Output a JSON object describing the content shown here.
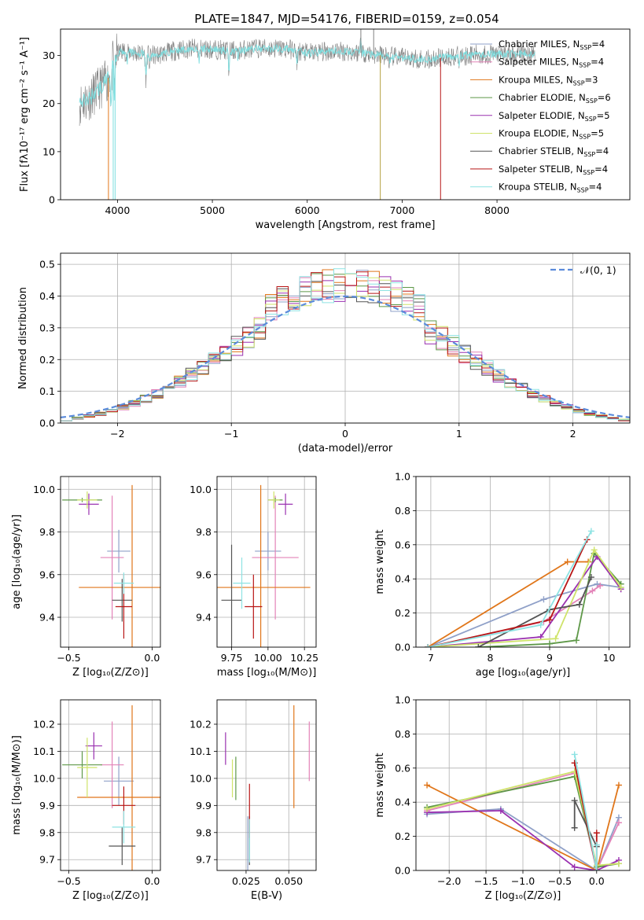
{
  "figure": {
    "background": "#ffffff"
  },
  "colors": {
    "Chabrier MILES": "#8fa0c8",
    "Salpeter MILES": "#e383b8",
    "Kroupa MILES": "#e0761a",
    "Chabrier ELODIE": "#5e9848",
    "Salpeter ELODIE": "#9a30b0",
    "Kroupa ELODIE": "#cfe36a",
    "Chabrier STELIB": "#555555",
    "Salpeter STELIB": "#b81616",
    "Kroupa STELIB": "#8ee3e3",
    "gaussian": "#5b8bdb",
    "spectrum_gray": "#808080",
    "spectrum_cyan": "#7fdfe0"
  },
  "chart_data": [
    {
      "id": "spectrum",
      "type": "line",
      "title": "PLATE=1847, MJD=54176, FIBERID=0159, z=0.054",
      "xlabel": "wavelength [Angstrom, rest frame]",
      "ylabel": "Flux [fλ10⁻¹⁷ erg cm⁻² s⁻¹ A⁻¹]",
      "xlim": [
        3400,
        9400
      ],
      "ylim": [
        0,
        35.5
      ],
      "xticks": [
        4000,
        5000,
        6000,
        7000,
        8000
      ],
      "yticks": [
        0,
        10,
        20,
        30
      ],
      "grid": false,
      "legend": "upper right",
      "legend_entries": [
        {
          "label": "Chabrier MILES, N",
          "sub": "SSP",
          "suffix": "=4"
        },
        {
          "label": "Salpeter MILES, N",
          "sub": "SSP",
          "suffix": "=4"
        },
        {
          "label": "Kroupa MILES, N",
          "sub": "SSP",
          "suffix": "=3"
        },
        {
          "label": "Chabrier ELODIE, N",
          "sub": "SSP",
          "suffix": "=6"
        },
        {
          "label": "Salpeter ELODIE, N",
          "sub": "SSP",
          "suffix": "=5"
        },
        {
          "label": "Kroupa ELODIE, N",
          "sub": "SSP",
          "suffix": "=5"
        },
        {
          "label": "Chabrier STELIB, N",
          "sub": "SSP",
          "suffix": "=4"
        },
        {
          "label": "Salpeter STELIB, N",
          "sub": "SSP",
          "suffix": "=4"
        },
        {
          "label": "Kroupa STELIB, N",
          "sub": "SSP",
          "suffix": "=4"
        }
      ],
      "continuum": [
        [
          3600,
          20
        ],
        [
          3700,
          21
        ],
        [
          3800,
          23
        ],
        [
          3900,
          25
        ],
        [
          3970,
          30
        ],
        [
          4050,
          31
        ],
        [
          4200,
          30.5
        ],
        [
          4400,
          30
        ],
        [
          4600,
          31
        ],
        [
          4800,
          31.5
        ],
        [
          5000,
          31.3
        ],
        [
          5200,
          31
        ],
        [
          5500,
          31.5
        ],
        [
          5800,
          31.4
        ],
        [
          6000,
          30.5
        ],
        [
          6300,
          31
        ],
        [
          6600,
          30.5
        ],
        [
          6800,
          30
        ],
        [
          7000,
          29.5
        ],
        [
          7300,
          29.2
        ],
        [
          7500,
          29.8
        ],
        [
          7800,
          30.2
        ],
        [
          8000,
          30.3
        ],
        [
          8400,
          30.4
        ]
      ],
      "features": [
        {
          "x": 3934,
          "depth": 8
        },
        {
          "x": 3968,
          "depth": 8
        },
        {
          "x": 4102,
          "depth": 2
        },
        {
          "x": 4300,
          "depth": 5
        },
        {
          "x": 4340,
          "depth": 2
        },
        {
          "x": 4861,
          "depth": 3
        },
        {
          "x": 5175,
          "depth": 4
        },
        {
          "x": 5270,
          "depth": 1.5
        },
        {
          "x": 5890,
          "depth": 3
        },
        {
          "x": 6563,
          "depth": -3
        },
        {
          "x": 6870,
          "depth": 2
        },
        {
          "x": 7600,
          "depth": 2
        }
      ],
      "spikes": [
        {
          "x": 3905,
          "y": 0
        },
        {
          "x": 3955,
          "y": 0
        },
        {
          "x": 3975,
          "y": 0
        },
        {
          "x": 6770,
          "y": 0
        },
        {
          "x": 7405,
          "y": 0
        },
        {
          "x": 6565,
          "y": 35.5
        },
        {
          "x": 6700,
          "y": 35.5
        }
      ]
    },
    {
      "id": "residual_hist",
      "type": "histogram",
      "xlabel": "(data-model)/error",
      "ylabel": "Normed distribution",
      "xlim": [
        -2.5,
        2.5
      ],
      "ylim": [
        0,
        0.535
      ],
      "xticks": [
        -2,
        -1,
        0,
        1,
        2
      ],
      "yticks": [
        0,
        0.1,
        0.2,
        0.3,
        0.4,
        0.5
      ],
      "grid": true,
      "bin_width": 0.1,
      "legend_entry": "𝒩(0, 1)",
      "gaussian": {
        "mu": 0,
        "sigma": 1
      },
      "peak_values": [
        0.49,
        0.48,
        0.5,
        0.51,
        0.46,
        0.44,
        0.4,
        0.42
      ]
    },
    {
      "id": "age_vs_Z",
      "type": "errorbar",
      "xlabel": "Z [log₁₀(Z/Z⊙)]",
      "ylabel": "age  [log₁₀(age/yr)]",
      "xlim": [
        -0.55,
        0.05
      ],
      "ylim": [
        9.26,
        10.06
      ],
      "xticks": [
        -0.5,
        0.0
      ],
      "xticklabels": [
        "−0.5",
        "0.0"
      ],
      "yticks": [
        9.4,
        9.6,
        9.8,
        10.0
      ],
      "grid": true,
      "points": [
        {
          "model": "Chabrier MILES",
          "x": -0.2,
          "y": 9.71,
          "xerr": 0.07,
          "yerr": 0.1
        },
        {
          "model": "Salpeter MILES",
          "x": -0.24,
          "y": 9.68,
          "xerr": 0.07,
          "yerr": 0.29
        },
        {
          "model": "Kroupa MILES",
          "x": -0.12,
          "y": 9.54,
          "xerr": 0.32,
          "yerr": 0.48
        },
        {
          "model": "Chabrier ELODIE",
          "x": -0.42,
          "y": 9.95,
          "xerr": 0.12,
          "yerr": 0.01
        },
        {
          "model": "Salpeter ELODIE",
          "x": -0.38,
          "y": 9.93,
          "xerr": 0.06,
          "yerr": 0.05
        },
        {
          "model": "Kroupa ELODIE",
          "x": -0.39,
          "y": 9.95,
          "xerr": 0.06,
          "yerr": 0.04
        },
        {
          "model": "Chabrier STELIB",
          "x": -0.18,
          "y": 9.48,
          "xerr": 0.06,
          "yerr": 0.1
        },
        {
          "model": "Salpeter STELIB",
          "x": -0.17,
          "y": 9.45,
          "xerr": 0.05,
          "yerr": 0.15
        },
        {
          "model": "Kroupa STELIB",
          "x": -0.17,
          "y": 9.56,
          "xerr": 0.06,
          "yerr": 0.05
        }
      ]
    },
    {
      "id": "age_vs_mass",
      "type": "errorbar",
      "xlabel": "mass [log₁₀(M/M⊙)]",
      "ylabel": "",
      "xlim": [
        9.65,
        10.33
      ],
      "ylim": [
        9.26,
        10.06
      ],
      "xticks": [
        9.75,
        10.0,
        10.25
      ],
      "xticklabels": [
        "9.75",
        "10.00",
        "10.25"
      ],
      "yticks": [
        9.4,
        9.6,
        9.8,
        10.0
      ],
      "grid": true,
      "points": [
        {
          "model": "Chabrier MILES",
          "x": 10.0,
          "y": 9.71,
          "xerr": 0.09,
          "yerr": 0.09
        },
        {
          "model": "Salpeter MILES",
          "x": 10.05,
          "y": 9.68,
          "xerr": 0.16,
          "yerr": 0.29
        },
        {
          "model": "Kroupa MILES",
          "x": 9.95,
          "y": 9.54,
          "xerr": 0.34,
          "yerr": 0.48
        },
        {
          "model": "Chabrier ELODIE",
          "x": 10.05,
          "y": 9.95,
          "xerr": 0.05,
          "yerr": 0.01
        },
        {
          "model": "Salpeter ELODIE",
          "x": 10.12,
          "y": 9.93,
          "xerr": 0.05,
          "yerr": 0.05
        },
        {
          "model": "Kroupa ELODIE",
          "x": 10.04,
          "y": 9.95,
          "xerr": 0.04,
          "yerr": 0.04
        },
        {
          "model": "Chabrier STELIB",
          "x": 9.75,
          "y": 9.48,
          "xerr": 0.07,
          "yerr": 0.26
        },
        {
          "model": "Salpeter STELIB",
          "x": 9.9,
          "y": 9.45,
          "xerr": 0.06,
          "yerr": 0.15
        },
        {
          "model": "Kroupa STELIB",
          "x": 9.82,
          "y": 9.56,
          "xerr": 0.06,
          "yerr": 0.12
        }
      ]
    },
    {
      "id": "weight_vs_age",
      "type": "line",
      "xlabel": "age  [log₁₀(age/yr)]",
      "ylabel": "mass weight",
      "xlim": [
        6.75,
        10.35
      ],
      "ylim": [
        0,
        1
      ],
      "xticks": [
        7,
        8,
        9,
        10
      ],
      "yticks": [
        0,
        0.2,
        0.4,
        0.6,
        0.8,
        1.0
      ],
      "grid": true,
      "series": [
        {
          "model": "Chabrier MILES",
          "x": [
            6.95,
            8.9,
            9.8,
            10.2
          ],
          "y": [
            0.0,
            0.28,
            0.37,
            0.35
          ]
        },
        {
          "model": "Salpeter MILES",
          "x": [
            6.95,
            8.9,
            9.72,
            9.85
          ],
          "y": [
            0.0,
            0.15,
            0.33,
            0.36
          ]
        },
        {
          "model": "Kroupa MILES",
          "x": [
            6.95,
            9.3,
            9.65
          ],
          "y": [
            0.0,
            0.5,
            0.5
          ]
        },
        {
          "model": "Chabrier ELODIE",
          "x": [
            7.8,
            9.0,
            9.45,
            9.75,
            10.2
          ],
          "y": [
            0.0,
            0.02,
            0.04,
            0.55,
            0.37
          ]
        },
        {
          "model": "Salpeter ELODIE",
          "x": [
            6.95,
            8.85,
            9.8,
            10.2
          ],
          "y": [
            0.0,
            0.06,
            0.53,
            0.34
          ]
        },
        {
          "model": "Kroupa ELODIE",
          "x": [
            6.95,
            9.1,
            9.75,
            10.2
          ],
          "y": [
            0.0,
            0.05,
            0.57,
            0.35
          ]
        },
        {
          "model": "Chabrier STELIB",
          "x": [
            7.8,
            9.0,
            9.5,
            9.7
          ],
          "y": [
            0.0,
            0.22,
            0.25,
            0.41
          ]
        },
        {
          "model": "Salpeter STELIB",
          "x": [
            6.95,
            9.0,
            9.63
          ],
          "y": [
            0.0,
            0.16,
            0.63
          ]
        },
        {
          "model": "Kroupa STELIB",
          "x": [
            6.95,
            8.85,
            9.7
          ],
          "y": [
            0.0,
            0.13,
            0.68
          ]
        }
      ]
    },
    {
      "id": "mass_vs_Z",
      "type": "errorbar",
      "xlabel": "Z [log₁₀(Z/Z⊙)]",
      "ylabel": "mass [log₁₀(M/M⊙)]",
      "xlim": [
        -0.55,
        0.05
      ],
      "ylim": [
        9.66,
        10.29
      ],
      "xticks": [
        -0.5,
        0.0
      ],
      "xticklabels": [
        "−0.5",
        "0.0"
      ],
      "yticks": [
        9.7,
        9.8,
        9.9,
        10.0,
        10.1,
        10.2
      ],
      "grid": true,
      "points": [
        {
          "model": "Chabrier MILES",
          "x": -0.2,
          "y": 9.99,
          "xerr": 0.09,
          "yerr": 0.09
        },
        {
          "model": "Salpeter MILES",
          "x": -0.24,
          "y": 10.05,
          "xerr": 0.07,
          "yerr": 0.16
        },
        {
          "model": "Kroupa MILES",
          "x": -0.12,
          "y": 9.93,
          "xerr": 0.33,
          "yerr": 0.34
        },
        {
          "model": "Chabrier ELODIE",
          "x": -0.42,
          "y": 10.05,
          "xerr": 0.12,
          "yerr": 0.05
        },
        {
          "model": "Salpeter ELODIE",
          "x": -0.35,
          "y": 10.12,
          "xerr": 0.05,
          "yerr": 0.05
        },
        {
          "model": "Kroupa ELODIE",
          "x": -0.39,
          "y": 10.04,
          "xerr": 0.06,
          "yerr": 0.11
        },
        {
          "model": "Chabrier STELIB",
          "x": -0.18,
          "y": 9.75,
          "xerr": 0.08,
          "yerr": 0.07
        },
        {
          "model": "Salpeter STELIB",
          "x": -0.17,
          "y": 9.9,
          "xerr": 0.07,
          "yerr": 0.07
        },
        {
          "model": "Kroupa STELIB",
          "x": -0.17,
          "y": 9.82,
          "xerr": 0.07,
          "yerr": 0.06
        }
      ]
    },
    {
      "id": "mass_vs_ebv",
      "type": "errorbar",
      "xlabel": "E(B-V)",
      "ylabel": "",
      "xlim": [
        0.008,
        0.066
      ],
      "ylim": [
        9.66,
        10.29
      ],
      "xticks": [
        0.025,
        0.05
      ],
      "xticklabels": [
        "0.025",
        "0.050"
      ],
      "yticks": [
        9.7,
        9.8,
        9.9,
        10.0,
        10.1,
        10.2
      ],
      "grid": true,
      "points": [
        {
          "model": "Chabrier MILES",
          "x": 0.026,
          "y": 9.76,
          "xerr": 0,
          "yerr": 0.1
        },
        {
          "model": "Salpeter MILES",
          "x": 0.062,
          "y": 10.1,
          "xerr": 0,
          "yerr": 0.11
        },
        {
          "model": "Kroupa MILES",
          "x": 0.053,
          "y": 10.08,
          "xerr": 0,
          "yerr": 0.19
        },
        {
          "model": "Chabrier ELODIE",
          "x": 0.019,
          "y": 10.0,
          "xerr": 0,
          "yerr": 0.08
        },
        {
          "model": "Salpeter ELODIE",
          "x": 0.013,
          "y": 10.11,
          "xerr": 0,
          "yerr": 0.06
        },
        {
          "model": "Kroupa ELODIE",
          "x": 0.017,
          "y": 10.0,
          "xerr": 0,
          "yerr": 0.07
        },
        {
          "model": "Chabrier STELIB",
          "x": 0.027,
          "y": 9.77,
          "xerr": 0,
          "yerr": 0.09
        },
        {
          "model": "Salpeter STELIB",
          "x": 0.027,
          "y": 9.88,
          "xerr": 0,
          "yerr": 0.1
        },
        {
          "model": "Kroupa STELIB",
          "x": 0.027,
          "y": 9.77,
          "xerr": 0,
          "yerr": 0.08
        }
      ]
    },
    {
      "id": "weight_vs_Z",
      "type": "line",
      "xlabel": "Z [log₁₀(Z/Z⊙)]",
      "ylabel": "mass weight",
      "xlim": [
        -2.45,
        0.45
      ],
      "ylim": [
        0,
        1
      ],
      "xticks": [
        -2.0,
        -1.5,
        -1.0,
        -0.5,
        0.0
      ],
      "xticklabels": [
        "−2.0",
        "−1.5",
        "−1.0",
        "−0.5",
        "0.0"
      ],
      "yticks": [
        0,
        0.2,
        0.4,
        0.6,
        0.8,
        1.0
      ],
      "grid": true,
      "series": [
        {
          "model": "Chabrier MILES",
          "x": [
            -2.3,
            -1.3,
            0.0,
            0.3
          ],
          "y": [
            0.33,
            0.36,
            0.0,
            0.31
          ]
        },
        {
          "model": "Salpeter MILES",
          "x": [
            -2.3,
            -0.3,
            0.0,
            0.3
          ],
          "y": [
            0.35,
            0.57,
            0.0,
            0.28
          ]
        },
        {
          "model": "Kroupa MILES",
          "x": [
            -2.3,
            0.0,
            0.3
          ],
          "y": [
            0.5,
            0.0,
            0.5
          ]
        },
        {
          "model": "Chabrier ELODIE",
          "x": [
            -2.3,
            -0.3,
            0.0,
            0.3
          ],
          "y": [
            0.37,
            0.55,
            0.02,
            0.04
          ]
        },
        {
          "model": "Salpeter ELODIE",
          "x": [
            -2.3,
            -1.3,
            -0.3,
            0.0,
            0.3
          ],
          "y": [
            0.34,
            0.35,
            0.02,
            0.0,
            0.06
          ]
        },
        {
          "model": "Kroupa ELODIE",
          "x": [
            -2.3,
            -0.3,
            0.0,
            0.3
          ],
          "y": [
            0.36,
            0.58,
            0.03,
            0.04
          ]
        },
        {
          "model": "Chabrier STELIB",
          "x": [
            -0.3,
            -0.3,
            0.0
          ],
          "y": [
            0.25,
            0.41,
            0.14
          ]
        },
        {
          "model": "Salpeter STELIB",
          "x": [
            -0.3,
            0.0,
            0.0
          ],
          "y": [
            0.63,
            0.0,
            0.22
          ]
        },
        {
          "model": "Kroupa STELIB",
          "x": [
            -0.3,
            0.0,
            0.0
          ],
          "y": [
            0.68,
            0.0,
            0.15
          ]
        }
      ]
    }
  ]
}
